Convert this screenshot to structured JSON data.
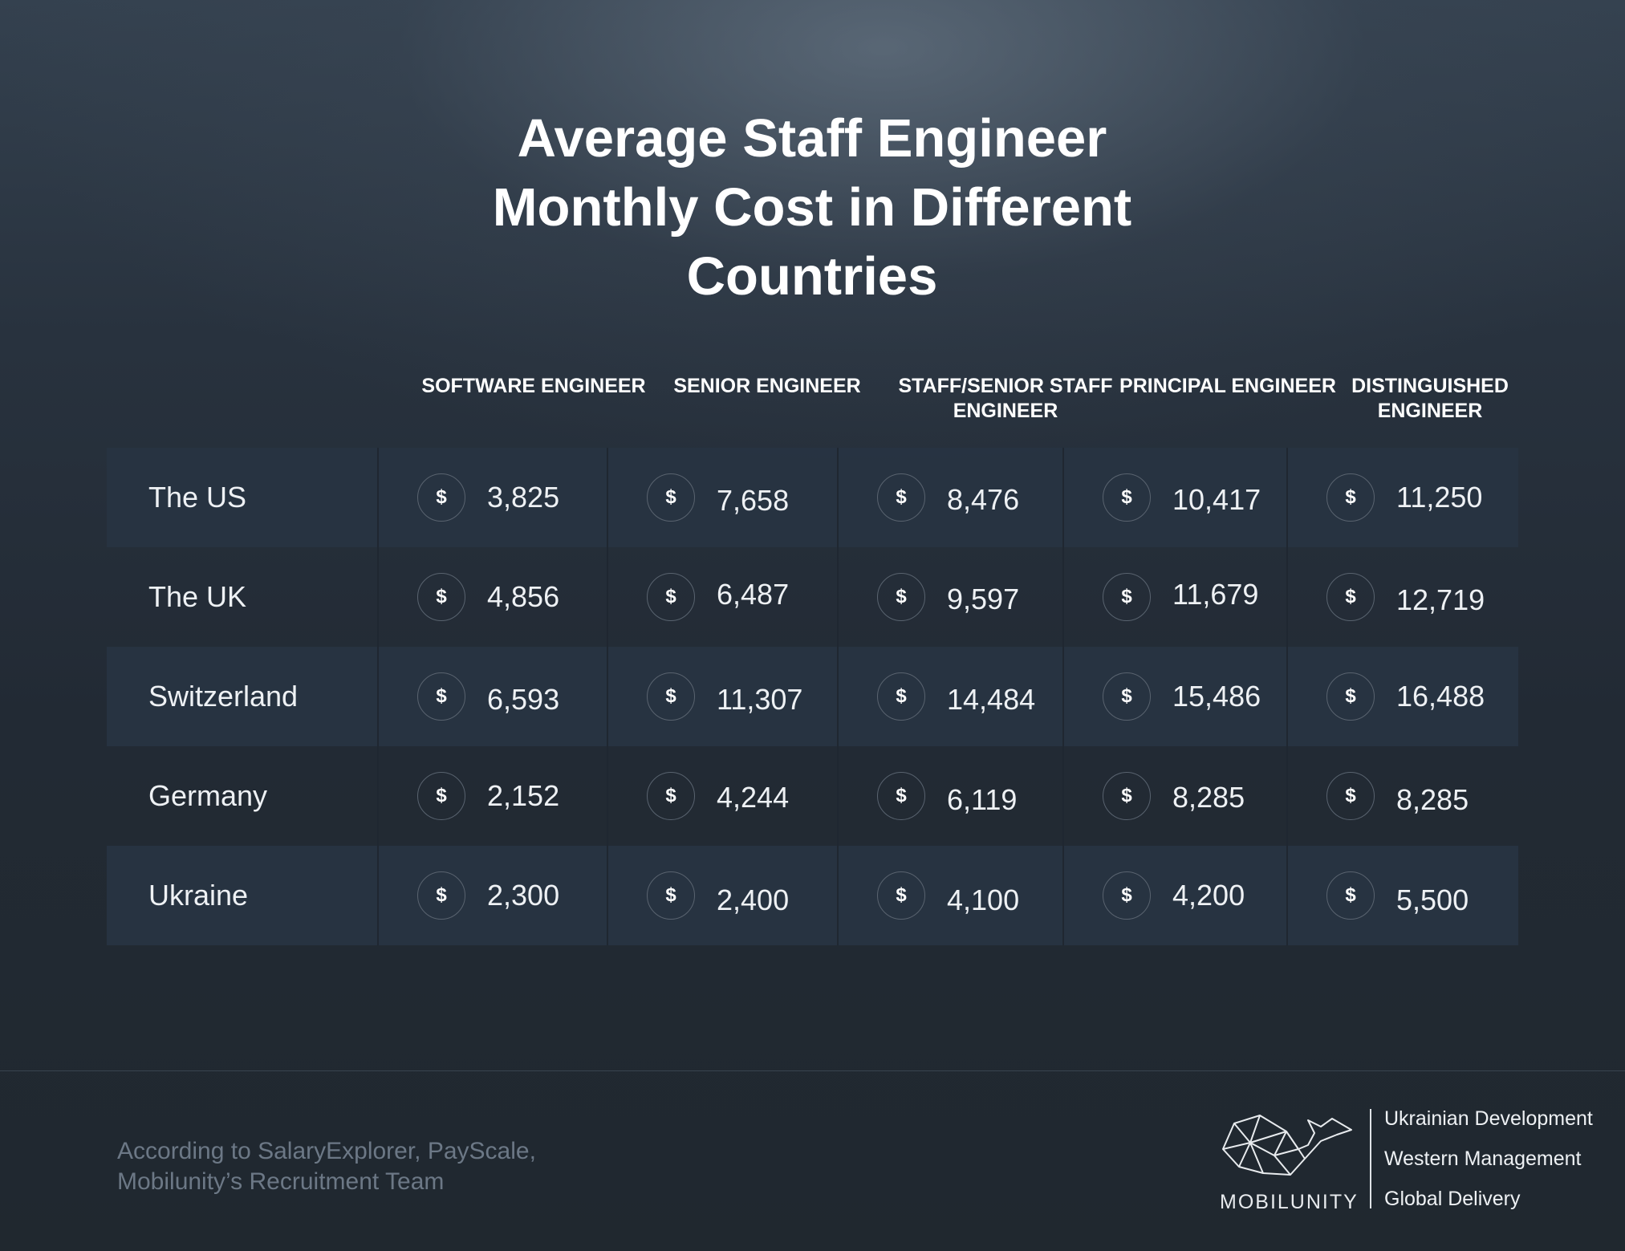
{
  "title": "Average Staff Engineer Monthly Cost in Different Countries",
  "table": {
    "currency_symbol": "$",
    "columns": [
      "SOFTWARE ENGINEER",
      "SENIOR ENGINEER",
      "STAFF/SENIOR STAFF ENGINEER",
      "PRINCIPAL ENGINEER",
      "DISTINGUISHED ENGINEER"
    ],
    "rows": [
      {
        "country": "The US",
        "values": [
          "3,825",
          "7,658",
          "8,476",
          "10,417",
          "11,250"
        ]
      },
      {
        "country": "The UK",
        "values": [
          "4,856",
          "6,487",
          "9,597",
          "11,679",
          "12,719"
        ]
      },
      {
        "country": "Switzerland",
        "values": [
          "6,593",
          "11,307",
          "14,484",
          "15,486",
          "16,488"
        ]
      },
      {
        "country": "Germany",
        "values": [
          "2,152",
          "4,244",
          "6,119",
          "8,285",
          "8,285"
        ]
      },
      {
        "country": "Ukraine",
        "values": [
          "2,300",
          "2,400",
          "4,100",
          "4,200",
          "5,500"
        ]
      }
    ]
  },
  "footer": {
    "source": [
      "According to SalaryExplorer, PayScale,",
      "Mobilunity’s Recruitment Team"
    ],
    "brand": "MOBILUNITY",
    "taglines": [
      "Ukrainian Development",
      "Western Management",
      "Global Delivery"
    ]
  }
}
